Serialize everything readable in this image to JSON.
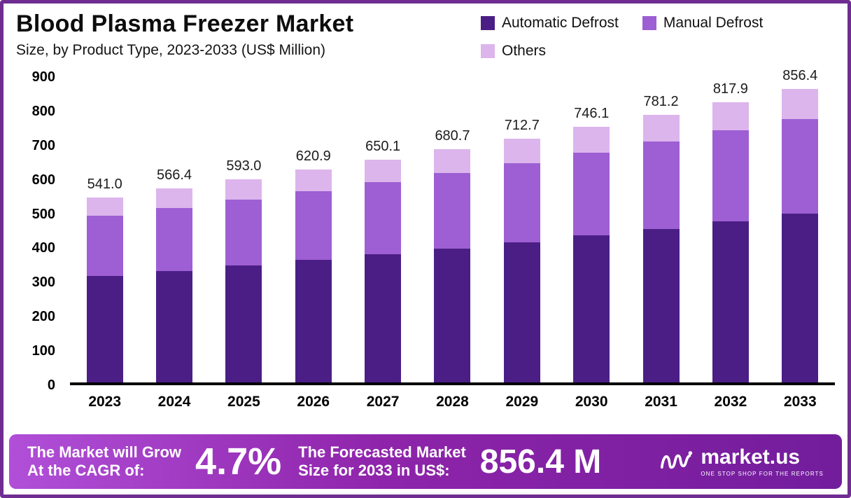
{
  "header": {
    "title": "Blood Plasma Freezer Market",
    "subtitle": "Size, by Product Type, 2023-2033 (US$ Million)"
  },
  "chart_data": {
    "type": "bar",
    "stacked": true,
    "title": "Blood Plasma Freezer Market",
    "subtitle": "Size, by Product Type, 2023-2033 (US$ Million)",
    "categories": [
      "2023",
      "2024",
      "2025",
      "2026",
      "2027",
      "2028",
      "2029",
      "2030",
      "2031",
      "2032",
      "2033"
    ],
    "series": [
      {
        "name": "Automatic Defrost",
        "color": "#4b1e86",
        "values": [
          311,
          326,
          341,
          357,
          374,
          391,
          410,
          429,
          449,
          470,
          492
        ]
      },
      {
        "name": "Manual Defrost",
        "color": "#9d5fd3",
        "values": [
          176,
          184,
          192,
          201,
          211,
          221,
          231,
          242,
          254,
          266,
          278
        ]
      },
      {
        "name": "Others",
        "color": "#dcb5ec",
        "values": [
          54,
          56.4,
          60,
          62.9,
          65.1,
          68.7,
          71.7,
          75.1,
          78.2,
          81.9,
          86.4
        ]
      }
    ],
    "totals": [
      541.0,
      566.4,
      593.0,
      620.9,
      650.1,
      680.7,
      712.7,
      746.1,
      781.2,
      817.9,
      856.4
    ],
    "ylim": [
      0,
      900
    ],
    "yticks": [
      0,
      100,
      200,
      300,
      400,
      500,
      600,
      700,
      800,
      900
    ],
    "grid": false,
    "legend_position": "top-right",
    "xlabel": "",
    "ylabel": ""
  },
  "banner": {
    "growth_label": "The Market will Grow\nAt the CAGR of:",
    "cagr": "4.7%",
    "forecast_label": "The Forecasted Market\nSize for 2033 in US$:",
    "forecast_value": "856.4 M",
    "brand": "market.us",
    "brand_tagline": "ONE STOP SHOP FOR THE REPORTS"
  }
}
